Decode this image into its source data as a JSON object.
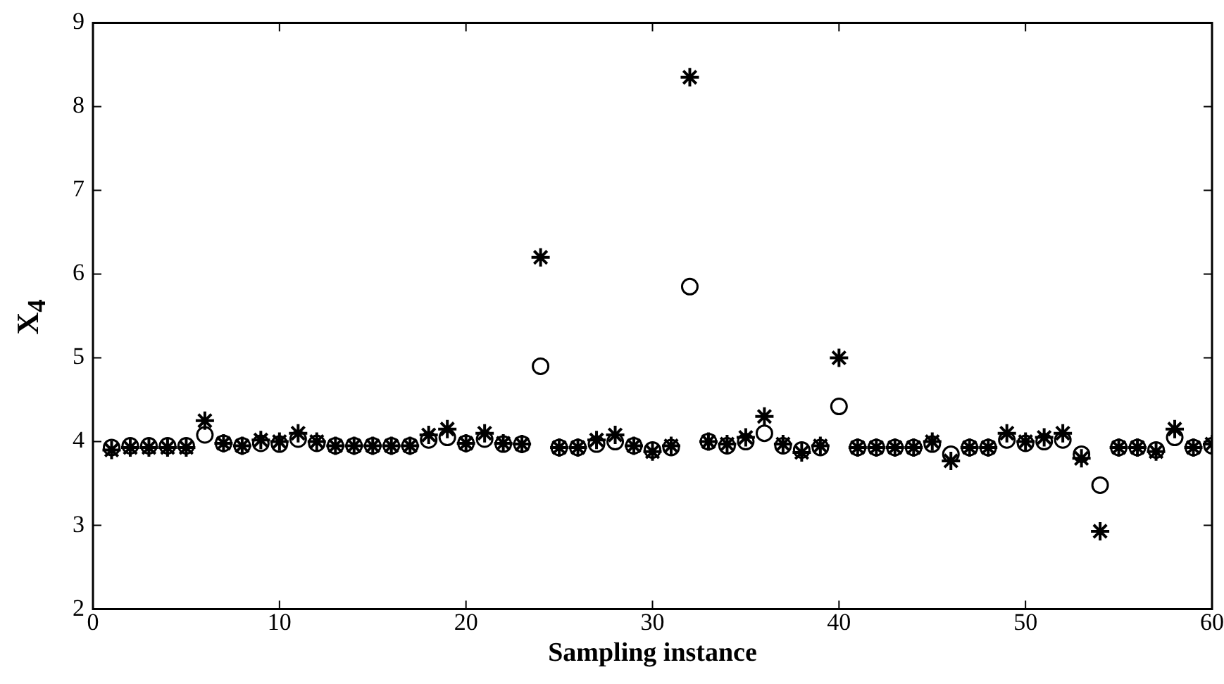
{
  "chart_data": {
    "type": "scatter",
    "xlabel": "Sampling instance",
    "ylabel": "X$_{4}$",
    "x": [
      1,
      2,
      3,
      4,
      5,
      6,
      7,
      8,
      9,
      10,
      11,
      12,
      13,
      14,
      15,
      16,
      17,
      18,
      19,
      20,
      21,
      22,
      23,
      24,
      25,
      26,
      27,
      28,
      29,
      30,
      31,
      32,
      33,
      34,
      35,
      36,
      37,
      38,
      39,
      40,
      41,
      42,
      43,
      44,
      45,
      46,
      47,
      48,
      49,
      50,
      51,
      52,
      53,
      54,
      55,
      56,
      57,
      58,
      59,
      60
    ],
    "series": [
      {
        "color": "#000000",
        "marker": "circle",
        "values": [
          3.93,
          3.95,
          3.95,
          3.95,
          3.95,
          4.08,
          3.98,
          3.95,
          3.98,
          3.97,
          4.03,
          3.98,
          3.95,
          3.95,
          3.95,
          3.95,
          3.95,
          4.02,
          4.05,
          3.98,
          4.03,
          3.97,
          3.97,
          4.9,
          3.93,
          3.93,
          3.97,
          4.0,
          3.95,
          3.9,
          3.93,
          5.85,
          4.0,
          3.95,
          4.0,
          4.1,
          3.95,
          3.9,
          3.93,
          4.42,
          3.93,
          3.93,
          3.93,
          3.93,
          3.97,
          3.85,
          3.93,
          3.93,
          4.02,
          3.98,
          4.0,
          4.02,
          3.85,
          3.48,
          3.93,
          3.93,
          3.9,
          4.05,
          3.93,
          3.95
        ]
      },
      {
        "color": "#000000",
        "marker": "cross",
        "values": [
          3.9,
          3.93,
          3.93,
          3.93,
          3.93,
          4.25,
          3.98,
          3.95,
          4.02,
          4.0,
          4.1,
          4.0,
          3.95,
          3.95,
          3.95,
          3.95,
          3.95,
          4.08,
          4.15,
          3.98,
          4.1,
          3.98,
          3.97,
          6.2,
          3.93,
          3.93,
          4.02,
          4.08,
          3.95,
          3.88,
          3.95,
          8.35,
          4.0,
          3.97,
          4.05,
          4.3,
          3.97,
          3.87,
          3.95,
          5.0,
          3.93,
          3.93,
          3.93,
          3.93,
          4.0,
          3.77,
          3.93,
          3.93,
          4.1,
          4.0,
          4.05,
          4.1,
          3.8,
          2.93,
          3.93,
          3.93,
          3.88,
          4.15,
          3.93,
          3.97
        ]
      }
    ],
    "xlim": [
      0,
      60
    ],
    "xticks": [
      0,
      10,
      20,
      30,
      40,
      50,
      60
    ],
    "ylim": [
      2,
      9
    ],
    "yticks": [
      2,
      3,
      4,
      5,
      6,
      7,
      8,
      9
    ],
    "grid": false,
    "legend": false
  }
}
